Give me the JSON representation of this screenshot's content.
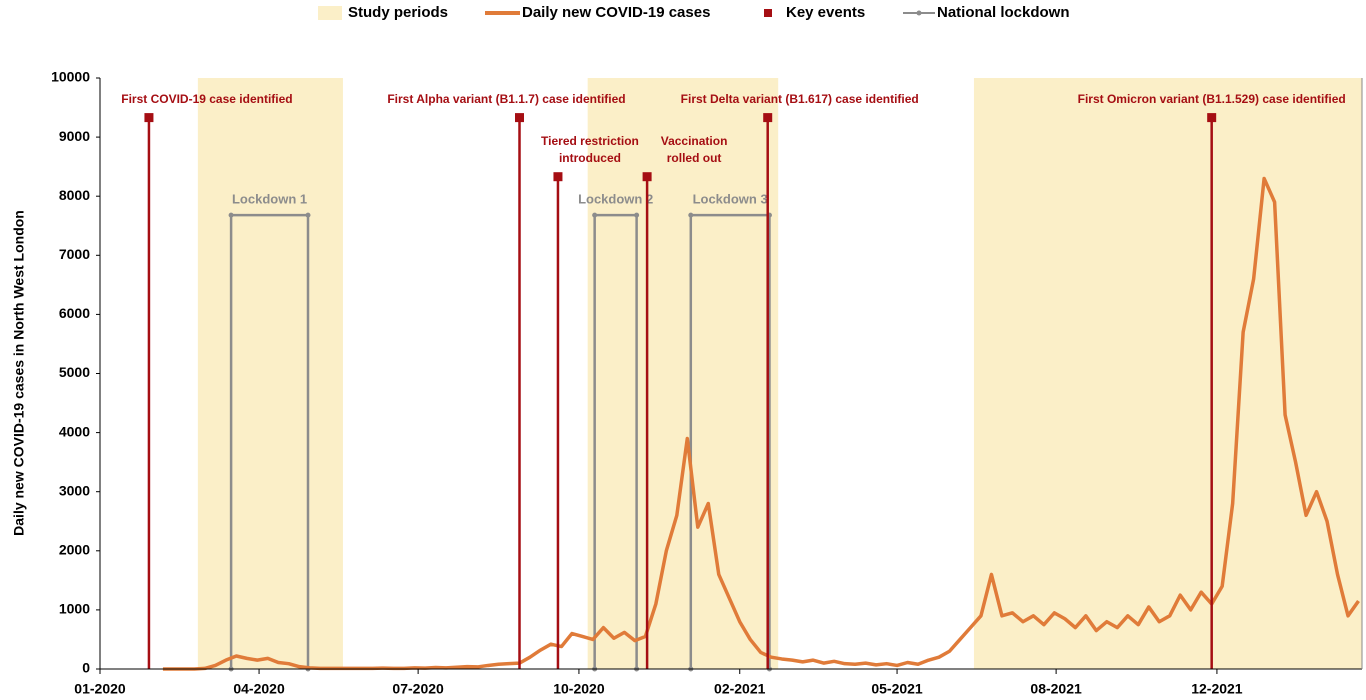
{
  "chart_data": {
    "type": "line",
    "ylabel": "Daily new COVID-19 cases in North West London",
    "ylim": [
      0,
      10000
    ],
    "yticks": [
      0,
      1000,
      2000,
      3000,
      4000,
      5000,
      6000,
      7000,
      8000,
      9000,
      10000
    ],
    "xlim": [
      0,
      722
    ],
    "xticks": [
      {
        "value": 0,
        "label": "01-2020"
      },
      {
        "value": 91,
        "label": "04-2020"
      },
      {
        "value": 182,
        "label": "07-2020"
      },
      {
        "value": 274,
        "label": "10-2020"
      },
      {
        "value": 366,
        "label": "02-2021"
      },
      {
        "value": 456,
        "label": "05-2021"
      },
      {
        "value": 547,
        "label": "08-2021"
      },
      {
        "value": 639,
        "label": "12-2021"
      }
    ],
    "x": [
      36,
      42,
      48,
      54,
      60,
      66,
      72,
      78,
      84,
      90,
      96,
      102,
      108,
      114,
      120,
      126,
      132,
      138,
      144,
      150,
      156,
      162,
      168,
      174,
      180,
      186,
      192,
      198,
      204,
      210,
      216,
      222,
      228,
      234,
      240,
      246,
      252,
      258,
      264,
      270,
      276,
      282,
      288,
      294,
      300,
      306,
      312,
      318,
      324,
      330,
      336,
      342,
      348,
      354,
      360,
      366,
      372,
      378,
      384,
      390,
      396,
      402,
      408,
      414,
      420,
      426,
      432,
      438,
      444,
      450,
      456,
      462,
      468,
      474,
      480,
      486,
      492,
      498,
      504,
      510,
      516,
      522,
      528,
      534,
      540,
      546,
      552,
      558,
      564,
      570,
      576,
      582,
      588,
      594,
      600,
      606,
      612,
      618,
      624,
      630,
      636,
      642,
      648,
      654,
      660,
      666,
      672,
      678,
      684,
      690,
      696,
      702,
      708,
      714,
      720
    ],
    "series": [
      {
        "name": "Daily new COVID-19 cases",
        "color": "#e07b39",
        "values": [
          0,
          0,
          0,
          0,
          10,
          60,
          150,
          220,
          180,
          150,
          180,
          110,
          90,
          40,
          20,
          10,
          10,
          10,
          10,
          10,
          10,
          15,
          10,
          10,
          20,
          15,
          25,
          20,
          30,
          40,
          35,
          60,
          80,
          90,
          100,
          200,
          320,
          420,
          380,
          600,
          550,
          500,
          700,
          520,
          620,
          480,
          550,
          1100,
          2000,
          2600,
          3900,
          2400,
          2800,
          1600,
          1200,
          800,
          500,
          280,
          200,
          170,
          150,
          120,
          150,
          100,
          130,
          90,
          80,
          100,
          70,
          90,
          60,
          110,
          80,
          150,
          200,
          300,
          500,
          700,
          900,
          1600,
          900,
          950,
          800,
          900,
          750,
          950,
          850,
          700,
          900,
          650,
          800,
          700,
          900,
          750,
          1050,
          800,
          900,
          1250,
          1000,
          1300,
          1100,
          1400,
          2800,
          5700,
          6600,
          8300,
          7900,
          4300,
          3500,
          2600,
          3000,
          2500,
          1600,
          900,
          1150
        ]
      }
    ],
    "study_periods": {
      "name": "Study periods",
      "color": "#fbefc8",
      "ranges": [
        [
          56,
          139
        ],
        [
          279,
          388
        ],
        [
          500,
          722
        ]
      ]
    },
    "key_events": {
      "name": "Key events",
      "color": "#a50e13",
      "events": [
        {
          "x": 28,
          "y": 9330,
          "label": [
            "First COVID-19 case identified"
          ]
        },
        {
          "x": 240,
          "y": 9330,
          "label": [
            "First Alpha variant (B1.1.7) case identified"
          ]
        },
        {
          "x": 262,
          "y": 8330,
          "label": [
            "Tiered restriction",
            "introduced"
          ]
        },
        {
          "x": 313,
          "y": 8330,
          "label": [
            "Vaccination",
            "rolled out"
          ]
        },
        {
          "x": 382,
          "y": 9330,
          "label": [
            "First Delta variant (B1.617) case identified"
          ]
        },
        {
          "x": 636,
          "y": 9330,
          "label": [
            "First Omicron variant (B1.1.529) case identified"
          ]
        }
      ]
    },
    "lockdowns": {
      "name": "National lockdown",
      "color": "#8c8c8c",
      "height": 7680,
      "periods": [
        {
          "start": 75,
          "end": 119,
          "label": "Lockdown 1"
        },
        {
          "start": 283,
          "end": 307,
          "label": "Lockdown 2"
        },
        {
          "start": 338,
          "end": 383,
          "label": "Lockdown 3"
        }
      ]
    }
  }
}
